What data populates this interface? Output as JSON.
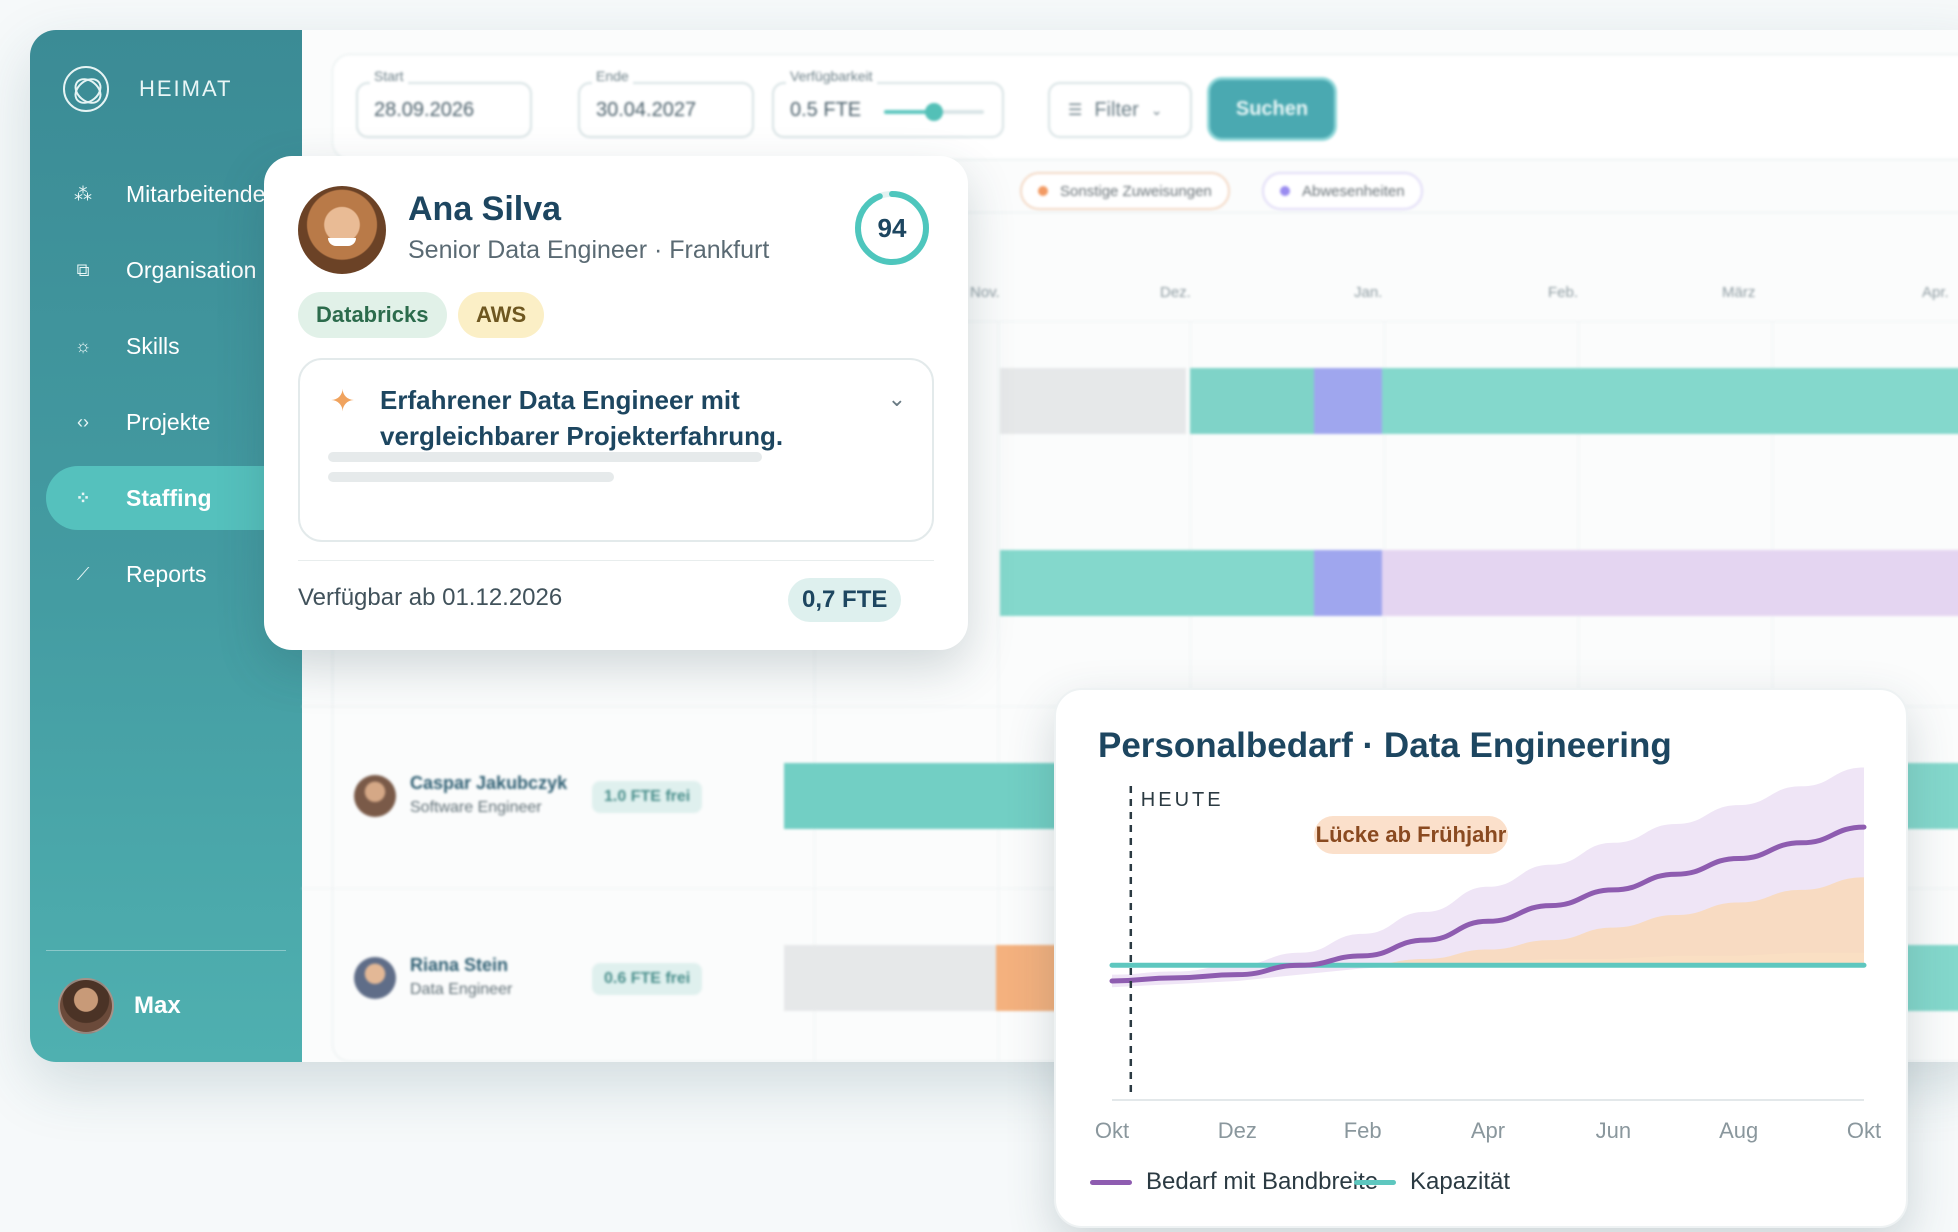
{
  "app": {
    "brand": "HEIMAT"
  },
  "sidebar": {
    "items": [
      {
        "label": "Mitarbeitende",
        "icon": "people-icon",
        "glyph": "⁂"
      },
      {
        "label": "Organisation",
        "icon": "org-chart-icon",
        "glyph": "⧉"
      },
      {
        "label": "Skills",
        "icon": "sun-icon",
        "glyph": "☼"
      },
      {
        "label": "Projekte",
        "icon": "code-icon",
        "glyph": "‹›"
      },
      {
        "label": "Staffing",
        "icon": "staffing-icon",
        "glyph": "⁘",
        "active": true
      },
      {
        "label": "Reports",
        "icon": "trend-icon",
        "glyph": "⟋"
      }
    ],
    "user": {
      "name": "Max"
    }
  },
  "toolbar": {
    "start": {
      "label": "Start",
      "value": "28.09.2026"
    },
    "dash": "–",
    "end": {
      "label": "Ende",
      "value": "30.04.2027"
    },
    "availability": {
      "label": "Verfügbarkeit",
      "value": "0.5 FTE",
      "slider_level": 0.5
    },
    "filter_label": "Filter",
    "search_label": "Suchen"
  },
  "legend_chips": [
    {
      "label": "Sonstige Zuweisungen",
      "color": "#f29a63"
    },
    {
      "label": "Abwesenheiten",
      "color": "#9a8cf0"
    }
  ],
  "timeline": {
    "months": [
      "Nov.",
      "Dez.",
      "Jan.",
      "Feb.",
      "März",
      "Apr."
    ]
  },
  "people": [
    {
      "name": "Caspar Jakubczyk",
      "role": "Software Engineer",
      "badge": "1.0 FTE frei"
    },
    {
      "name": "Riana Stein",
      "role": "Data Engineer",
      "badge": "0.6 FTE frei"
    }
  ],
  "candidate": {
    "name": "Ana Silva",
    "subtitle": "Senior Data Engineer · Frankfurt",
    "score": "94",
    "score_value": 94,
    "tags": [
      "Databricks",
      "AWS"
    ],
    "summary": "Erfahrener Data Engineer mit vergleichbarer Projekterfahrung.",
    "available": "Verfügbar ab 01.12.2026",
    "fte": "0,7 FTE"
  },
  "chart_data": {
    "type": "line",
    "title": "Personalbedarf · Data Engineering",
    "x": [
      "Okt",
      "Nov",
      "Dez",
      "Jan",
      "Feb",
      "Mär",
      "Apr",
      "Mai",
      "Jun",
      "Jul",
      "Aug",
      "Sep",
      "Okt"
    ],
    "xtick_labels": [
      "Okt",
      "Dez",
      "Feb",
      "Apr",
      "Jun",
      "Aug",
      "Okt"
    ],
    "ylim": [
      0,
      100
    ],
    "series": [
      {
        "name": "Bedarf mit Bandbreite",
        "color": "#8e5cb0",
        "values": [
          36,
          37,
          38,
          41,
          44,
          49,
          55,
          60,
          65,
          70,
          75,
          80,
          85
        ],
        "band_upper": [
          38,
          39,
          41,
          45,
          51,
          58,
          66,
          73,
          80,
          86,
          92,
          98,
          104
        ],
        "band_lower": [
          34,
          35,
          36,
          38,
          40,
          41,
          42,
          43,
          43,
          44,
          44,
          45,
          45
        ]
      },
      {
        "name": "Kapazität",
        "color": "#5ec7bf",
        "values": [
          41,
          41,
          41,
          41,
          41,
          41,
          41,
          41,
          41,
          41,
          41,
          41,
          41
        ]
      }
    ],
    "gap_area": {
      "color": "#f9d9b8",
      "from_index": 4,
      "top_values": [
        41,
        43,
        46,
        49,
        53,
        57,
        61,
        65,
        69
      ]
    },
    "today_marker": {
      "label": "HEUTE",
      "x_index": 0.3
    },
    "annotation": {
      "label": "Lücke ab Frühjahr"
    },
    "legend": [
      {
        "label": "Bedarf mit Bandbreite",
        "color": "#8e5cb0"
      },
      {
        "label": "Kapazität",
        "color": "#5ec7bf"
      }
    ]
  }
}
